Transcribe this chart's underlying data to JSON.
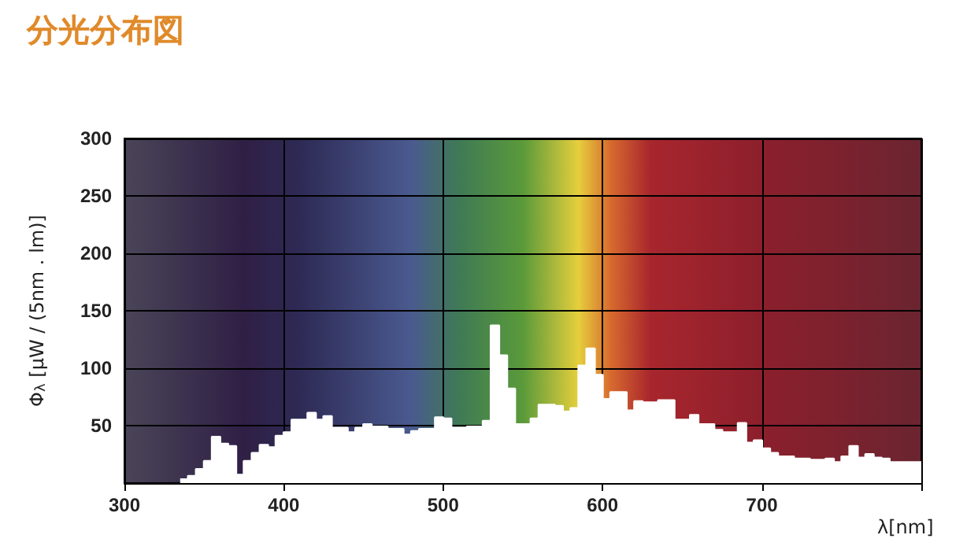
{
  "chart_data": {
    "type": "area",
    "title": "分光分布図",
    "xlabel": "λ[nm]",
    "ylabel": "Φ$_{λ}$ [μW / (5nm . lm)]",
    "xlim": [
      300,
      800
    ],
    "xticks": [
      300,
      400,
      500,
      600,
      700,
      {
        "value": 800,
        "label": null
      }
    ],
    "ylim": [
      0,
      300
    ],
    "yticks": [
      {
        "value": 0,
        "label": null
      },
      50,
      100,
      150,
      200,
      250,
      300
    ],
    "grid": true,
    "series": [
      {
        "color": "#ffffff",
        "x": [
          335,
          340,
          340,
          345,
          345,
          350,
          350,
          355,
          355,
          360,
          360,
          365,
          365,
          370,
          370,
          375,
          375,
          380,
          380,
          385,
          385,
          390,
          390,
          395,
          395,
          400,
          400,
          405,
          405,
          410,
          410,
          415,
          415,
          420,
          420,
          425,
          425,
          430,
          430,
          435,
          435,
          440,
          440,
          445,
          445,
          450,
          450,
          455,
          455,
          460,
          460,
          465,
          465,
          470,
          470,
          475,
          475,
          480,
          480,
          485,
          485,
          490,
          490,
          495,
          495,
          500,
          500,
          505,
          505,
          510,
          510,
          515,
          515,
          520,
          520,
          525,
          525,
          530,
          530,
          535,
          535,
          540,
          540,
          545,
          545,
          550,
          550,
          555,
          555,
          560,
          560,
          565,
          565,
          570,
          570,
          575,
          575,
          580,
          580,
          585,
          585,
          590,
          590,
          595,
          595,
          600,
          600,
          605,
          605,
          610,
          610,
          615,
          615,
          620,
          620,
          625,
          625,
          630,
          630,
          635,
          635,
          640,
          640,
          645,
          645,
          650,
          650,
          655,
          655,
          660,
          660,
          665,
          665,
          670,
          670,
          675,
          675,
          680,
          680,
          685,
          685,
          690,
          690,
          695,
          695,
          700,
          700,
          705,
          705,
          710,
          710,
          715,
          715,
          720,
          720,
          725,
          725,
          730,
          730,
          735,
          735,
          740,
          740,
          745,
          745,
          750,
          750,
          755,
          755,
          760,
          760,
          765,
          765,
          770,
          770,
          775,
          775,
          780,
          780,
          785,
          785,
          790,
          790,
          795,
          795,
          800
        ],
        "values": [
          3,
          3,
          6,
          6,
          12,
          12,
          19,
          19,
          40,
          40,
          34,
          34,
          32,
          32,
          7,
          7,
          19,
          19,
          26,
          26,
          33,
          33,
          31,
          31,
          41,
          41,
          44,
          44,
          55,
          55,
          55,
          55,
          61,
          61,
          55,
          55,
          58,
          58,
          48,
          48,
          48,
          48,
          44,
          44,
          48,
          48,
          51,
          51,
          49,
          49,
          49,
          49,
          47,
          47,
          47,
          47,
          42,
          42,
          45,
          45,
          47,
          47,
          47,
          47,
          57,
          57,
          56,
          56,
          48,
          48,
          48,
          48,
          49,
          49,
          49,
          49,
          54,
          54,
          137,
          137,
          111,
          111,
          82,
          82,
          51,
          51,
          51,
          51,
          56,
          56,
          68,
          68,
          68,
          68,
          67,
          67,
          62,
          62,
          65,
          65,
          102,
          102,
          117,
          117,
          94,
          94,
          73,
          73,
          79,
          79,
          79,
          79,
          63,
          63,
          71,
          71,
          70,
          70,
          70,
          70,
          72,
          72,
          72,
          72,
          55,
          55,
          55,
          55,
          59,
          59,
          51,
          51,
          51,
          51,
          46,
          46,
          44,
          44,
          44,
          44,
          52,
          52,
          35,
          35,
          37,
          37,
          30,
          30,
          26,
          26,
          23,
          23,
          23,
          23,
          21,
          21,
          21,
          21,
          20,
          20,
          20,
          20,
          21,
          21,
          18,
          18,
          23,
          23,
          32,
          32,
          22,
          22,
          25,
          25,
          22,
          22,
          21,
          21,
          18,
          18,
          18,
          18,
          18,
          18,
          18,
          18
        ]
      }
    ]
  }
}
